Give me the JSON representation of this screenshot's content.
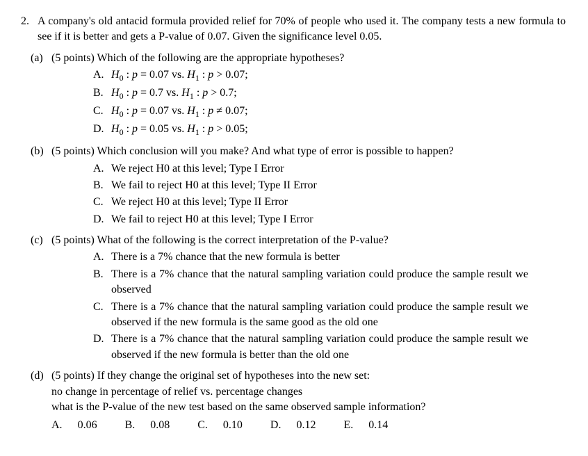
{
  "question": {
    "number": "2.",
    "intro": "A company's old antacid formula provided relief for 70% of people who used it. The company tests a new formula to see if it is better and gets a P-value of 0.07. Given the significance level 0.05.",
    "parts": [
      {
        "label": "(a)",
        "points": "(5 points)",
        "prompt": "Which of the following are the appropriate hypotheses?",
        "choices": [
          {
            "label": "A.",
            "html": "<span class='ital'>H</span><span class='sub0'>0</span> : <span class='ital'>p</span> = 0.07 vs. <span class='ital'>H</span><span class='sub0'>1</span> : <span class='ital'>p</span> &gt; 0.07;"
          },
          {
            "label": "B.",
            "html": "<span class='ital'>H</span><span class='sub0'>0</span> : <span class='ital'>p</span> = 0.7 vs. <span class='ital'>H</span><span class='sub0'>1</span> : <span class='ital'>p</span> &gt; 0.7;"
          },
          {
            "label": "C.",
            "html": "<span class='ital'>H</span><span class='sub0'>0</span> : <span class='ital'>p</span> = 0.07 vs. <span class='ital'>H</span><span class='sub0'>1</span> : <span class='ital'>p</span> ≠ 0.07;"
          },
          {
            "label": "D.",
            "html": "<span class='ital'>H</span><span class='sub0'>0</span> : <span class='ital'>p</span> = 0.05 vs. <span class='ital'>H</span><span class='sub0'>1</span> : <span class='ital'>p</span> &gt; 0.05;"
          }
        ]
      },
      {
        "label": "(b)",
        "points": "(5 points)",
        "prompt": "Which conclusion will you make? And what type of error is possible to happen?",
        "choices": [
          {
            "label": "A.",
            "text": "We reject H0 at this level; Type I Error"
          },
          {
            "label": "B.",
            "text": "We fail to reject H0 at this level; Type II Error"
          },
          {
            "label": "C.",
            "text": "We reject H0 at this level; Type II Error"
          },
          {
            "label": "D.",
            "text": "We fail to reject H0 at this level; Type I Error"
          }
        ]
      },
      {
        "label": "(c)",
        "points": "(5 points)",
        "prompt": "What of the following is the correct interpretation of the P-value?",
        "choices": [
          {
            "label": "A.",
            "text": "There is a 7% chance that the new formula is better"
          },
          {
            "label": "B.",
            "text": "There is a 7% chance that the natural sampling variation could produce the sample result we observed"
          },
          {
            "label": "C.",
            "text": "There is a 7% chance that the natural sampling variation could produce the sample result we observed if the new formula is the same good as the old one"
          },
          {
            "label": "D.",
            "text": "There is a 7% chance that the natural sampling variation could produce the sample result we observed if the new formula is better than the old one"
          }
        ]
      },
      {
        "label": "(d)",
        "points": "(5 points)",
        "prompt": "If they change the original set of hypotheses into the new set:",
        "extra_lines": [
          "no change in percentage of relief vs. percentage changes",
          "what is the P-value of the new test based on the same observed sample information?"
        ],
        "inline_choices": [
          {
            "label": "A.",
            "text": "0.06"
          },
          {
            "label": "B.",
            "text": "0.08"
          },
          {
            "label": "C.",
            "text": "0.10"
          },
          {
            "label": "D.",
            "text": "0.12"
          },
          {
            "label": "E.",
            "text": "0.14"
          }
        ]
      }
    ]
  }
}
